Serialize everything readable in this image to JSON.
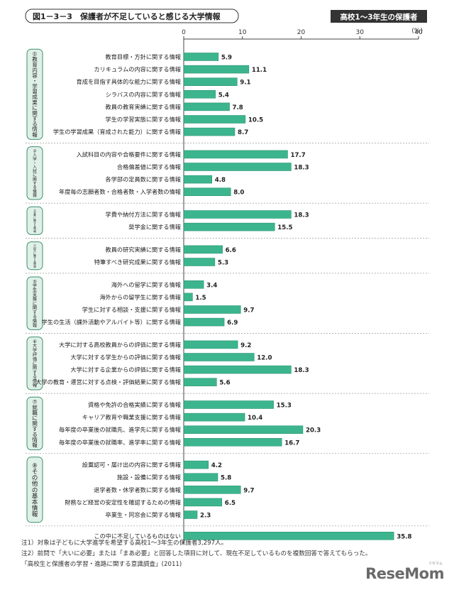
{
  "title": "図1－3－3　保護者が不足していると感じる大学情報",
  "badge": "高校1～3年生の保護者",
  "notes": [
    "注1）対象は子どもに大学進学を希望する高校1～3年生の保護者3,297人。",
    "注2）前問で「大いに必要」または「まあ必要」と回答した項目に対して、現在不足しているものを複数回答で答えてもらった。",
    "「高校生と保護者の学習・進路に関する意識調査」(2011)"
  ],
  "logo": "ReseMom",
  "logo_sub": "リセマム",
  "colors": {
    "bar": "#3cb58e",
    "bar_edge": "#1f8a68",
    "group_fill": "#dff0e8",
    "group_edge": "#3a8f6b",
    "title_edge": "#333333",
    "badge_bg": "#333333"
  },
  "chart_data": {
    "type": "bar",
    "orientation": "horizontal",
    "unit": "(%)",
    "xlim": [
      0,
      40
    ],
    "xticks": [
      0,
      10,
      20,
      30,
      40
    ],
    "groups": [
      {
        "label": "①教育内容・学習成果に関する情報",
        "items": [
          {
            "label": "教育目標・方針に関する情報",
            "value": 5.9
          },
          {
            "label": "カリキュラムの内容に関する情報",
            "value": 11.1
          },
          {
            "label": "育成を目指す具体的な能力に関する情報",
            "value": 9.1
          },
          {
            "label": "シラバスの内容に関する情報",
            "value": 5.4
          },
          {
            "label": "教員の教育実績に関する情報",
            "value": 7.8
          },
          {
            "label": "学生の学習実態に関する情報",
            "value": 10.5
          },
          {
            "label": "学生の学習成果（育成された能力）に関する情報",
            "value": 8.7
          }
        ]
      },
      {
        "label": "②入学・入試に関する情報",
        "items": [
          {
            "label": "入試科目の内容や合格要件に関する情報",
            "value": 17.7
          },
          {
            "label": "合格偏差値に関する情報",
            "value": 18.3
          },
          {
            "label": "各学部の定員数に関する情報",
            "value": 4.8
          },
          {
            "label": "年度毎の志願者数・合格者数・入学者数の情報",
            "value": 8.0
          }
        ]
      },
      {
        "label": "③学費に関する情報",
        "items": [
          {
            "label": "学費や納付方法に関する情報",
            "value": 18.3
          },
          {
            "label": "奨学金に関する情報",
            "value": 15.5
          }
        ]
      },
      {
        "label": "④研究に関する情報",
        "items": [
          {
            "label": "教員の研究実績に関する情報",
            "value": 6.6
          },
          {
            "label": "特筆すべき研究成果に関する情報",
            "value": 5.3
          }
        ]
      },
      {
        "label": "⑤学生支援に関する情報",
        "items": [
          {
            "label": "海外への留学に関する情報",
            "value": 3.4
          },
          {
            "label": "海外からの留学生に関する情報",
            "value": 1.5
          },
          {
            "label": "学生に対する相談・支援に関する情報",
            "value": 9.7
          },
          {
            "label": "学生の生活（課外活動やアルバイト等）に関する情報",
            "value": 6.9
          }
        ]
      },
      {
        "label": "⑥大学評価に関する情報",
        "items": [
          {
            "label": "大学に対する高校教員からの評価に関する情報",
            "value": 9.2
          },
          {
            "label": "大学に対する学生からの評価に関する情報",
            "value": 12.0
          },
          {
            "label": "大学に対する企業からの評価に関する情報",
            "value": 18.3
          },
          {
            "label": "大学の教育・運営に対する点検・評価結果に関する情報",
            "value": 5.6
          }
        ]
      },
      {
        "label": "⑦就職に関する情報",
        "items": [
          {
            "label": "資格や免許の合格実績に関する情報",
            "value": 15.3
          },
          {
            "label": "キャリア教育や職業支援に関する情報",
            "value": 10.4
          },
          {
            "label": "毎年度の卒業後の就職先、進学先に関する情報",
            "value": 20.3
          },
          {
            "label": "毎年度の卒業後の就職率、進学率に関する情報",
            "value": 16.7
          }
        ]
      },
      {
        "label": "⑧その他の基本情報",
        "items": [
          {
            "label": "設置認可・届け出の内容に関する情報",
            "value": 4.2
          },
          {
            "label": "施設・設備に関する情報",
            "value": 5.8
          },
          {
            "label": "退学者数・休学者数に関する情報",
            "value": 9.7
          },
          {
            "label": "財務など経営の安定性を確認するための情報",
            "value": 6.5
          },
          {
            "label": "卒業生・同窓会に関する情報",
            "value": 2.3
          }
        ]
      }
    ],
    "extra": {
      "label": "この中に不足しているものはない",
      "value": 35.8
    }
  }
}
